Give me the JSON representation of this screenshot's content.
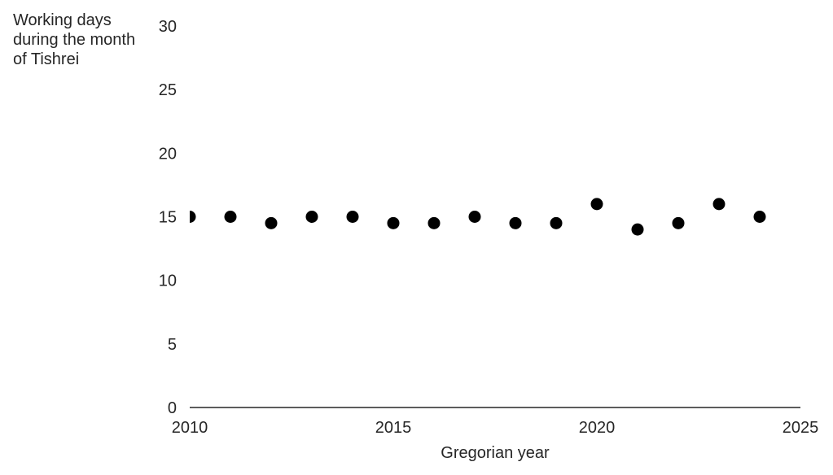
{
  "chart_data": {
    "type": "scatter",
    "title": "",
    "xlabel": "Gregorian year",
    "ylabel_lines": [
      "Working days",
      "during the month",
      "of Tishrei"
    ],
    "xlim": [
      2010,
      2025
    ],
    "ylim": [
      0,
      30
    ],
    "xticks": [
      2010,
      2015,
      2020,
      2025
    ],
    "yticks": [
      0,
      5,
      10,
      15,
      20,
      25,
      30
    ],
    "grid": false,
    "legend": "none",
    "marker_color": "#000000",
    "axis_color": "#262626",
    "series": [
      {
        "x": [
          2010,
          2011,
          2012,
          2013,
          2014,
          2015,
          2016,
          2017,
          2018,
          2019,
          2020,
          2021,
          2022,
          2023,
          2024
        ],
        "y": [
          15,
          15,
          14.5,
          15,
          15,
          14.5,
          14.5,
          15,
          14.5,
          14.5,
          16,
          14,
          14.5,
          16,
          15
        ]
      }
    ]
  }
}
